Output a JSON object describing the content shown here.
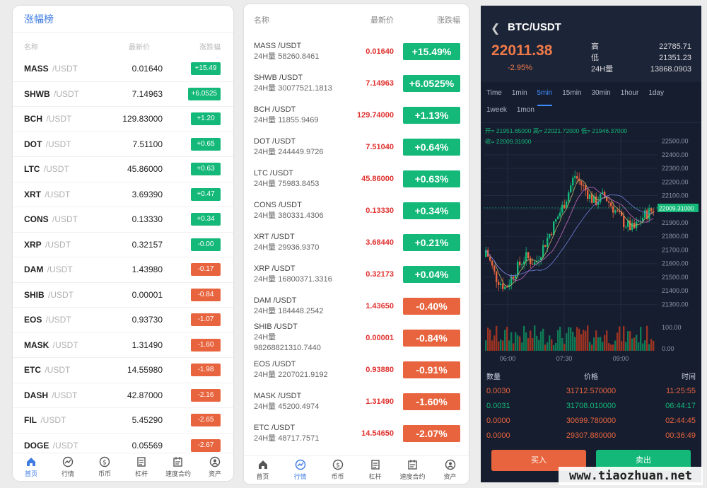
{
  "panel1": {
    "title": "涨幅榜",
    "headers": [
      "名称",
      "最新价",
      "涨跌幅"
    ],
    "rows": [
      {
        "base": "MASS",
        "quote": " /USDT",
        "price": "0.01640",
        "change": "+15.49",
        "dir": "up"
      },
      {
        "base": "SHWB",
        "quote": " /USDT",
        "price": "7.14963",
        "change": "+6.0525",
        "dir": "up"
      },
      {
        "base": "BCH",
        "quote": " /USDT",
        "price": "129.83000",
        "change": "+1.20",
        "dir": "up"
      },
      {
        "base": "DOT",
        "quote": " /USDT",
        "price": "7.51100",
        "change": "+0.65",
        "dir": "up"
      },
      {
        "base": "LTC",
        "quote": " /USDT",
        "price": "45.86000",
        "change": "+0.63",
        "dir": "up"
      },
      {
        "base": "XRT",
        "quote": " /USDT",
        "price": "3.69390",
        "change": "+0.47",
        "dir": "up"
      },
      {
        "base": "CONS",
        "quote": " /USDT",
        "price": "0.13330",
        "change": "+0.34",
        "dir": "up"
      },
      {
        "base": "XRP",
        "quote": " /USDT",
        "price": "0.32157",
        "change": "-0.00",
        "dir": "up"
      },
      {
        "base": "DAM",
        "quote": " /USDT",
        "price": "1.43980",
        "change": "-0.17",
        "dir": "dn"
      },
      {
        "base": "SHIB",
        "quote": " /USDT",
        "price": "0.00001",
        "change": "-0.84",
        "dir": "dn"
      },
      {
        "base": "EOS",
        "quote": " /USDT",
        "price": "0.93730",
        "change": "-1.07",
        "dir": "dn"
      },
      {
        "base": "MASK",
        "quote": " /USDT",
        "price": "1.31490",
        "change": "-1.60",
        "dir": "dn"
      },
      {
        "base": "ETC",
        "quote": " /USDT",
        "price": "14.55980",
        "change": "-1.98",
        "dir": "dn"
      },
      {
        "base": "DASH",
        "quote": " /USDT",
        "price": "42.87000",
        "change": "-2.16",
        "dir": "dn"
      },
      {
        "base": "FIL",
        "quote": " /USDT",
        "price": "5.45290",
        "change": "-2.65",
        "dir": "dn"
      },
      {
        "base": "DOGE",
        "quote": " /USDT",
        "price": "0.05569",
        "change": "-2.67",
        "dir": "dn"
      }
    ],
    "tabs": [
      {
        "label": "首页",
        "icon": "home-icon",
        "active": true
      },
      {
        "label": "行情",
        "icon": "market-icon",
        "active": false
      },
      {
        "label": "币币",
        "icon": "coin-icon",
        "active": false
      },
      {
        "label": "杠杆",
        "icon": "leverage-icon",
        "active": false
      },
      {
        "label": "速度合约",
        "icon": "contract-icon",
        "active": false
      },
      {
        "label": "资产",
        "icon": "asset-icon",
        "active": false
      }
    ]
  },
  "panel2": {
    "headers": [
      "名称",
      "最新价",
      "涨跌幅"
    ],
    "rows": [
      {
        "pair": "MASS /USDT",
        "vol": "24H量 58260.8461",
        "price": "0.01640",
        "change": "+15.49%",
        "dir": "up"
      },
      {
        "pair": "SHWB /USDT",
        "vol": "24H量 30077521.1813",
        "price": "7.14963",
        "change": "+6.0525%",
        "dir": "up"
      },
      {
        "pair": "BCH /USDT",
        "vol": "24H量 11855.9469",
        "price": "129.74000",
        "change": "+1.13%",
        "dir": "up"
      },
      {
        "pair": "DOT /USDT",
        "vol": "24H量 244449.9726",
        "price": "7.51040",
        "change": "+0.64%",
        "dir": "up"
      },
      {
        "pair": "LTC /USDT",
        "vol": "24H量 75983.8453",
        "price": "45.86000",
        "change": "+0.63%",
        "dir": "up"
      },
      {
        "pair": "CONS /USDT",
        "vol": "24H量 380331.4306",
        "price": "0.13330",
        "change": "+0.34%",
        "dir": "up"
      },
      {
        "pair": "XRT /USDT",
        "vol": "24H量 29936.9370",
        "price": "3.68440",
        "change": "+0.21%",
        "dir": "up"
      },
      {
        "pair": "XRP /USDT",
        "vol": "24H量 16800371.3316",
        "price": "0.32173",
        "change": "+0.04%",
        "dir": "up"
      },
      {
        "pair": "DAM /USDT",
        "vol": "24H量 184448.2542",
        "price": "1.43650",
        "change": "-0.40%",
        "dir": "dn"
      },
      {
        "pair": "SHIB /USDT",
        "vol": "24H量 98268821310.7440",
        "price": "0.00001",
        "change": "-0.84%",
        "dir": "dn"
      },
      {
        "pair": "EOS /USDT",
        "vol": "24H量 2207021.9192",
        "price": "0.93880",
        "change": "-0.91%",
        "dir": "dn"
      },
      {
        "pair": "MASK /USDT",
        "vol": "24H量 45200.4974",
        "price": "1.31490",
        "change": "-1.60%",
        "dir": "dn"
      },
      {
        "pair": "ETC /USDT",
        "vol": "24H量 48717.7571",
        "price": "14.54650",
        "change": "-2.07%",
        "dir": "dn"
      },
      {
        "pair": "DASH /USDT",
        "vol": "",
        "price": "",
        "change": "",
        "dir": "dn"
      }
    ],
    "tabs": [
      {
        "label": "首页",
        "icon": "home-icon",
        "active": false
      },
      {
        "label": "行情",
        "icon": "market-icon",
        "active": true
      },
      {
        "label": "币币",
        "icon": "coin-icon",
        "active": false
      },
      {
        "label": "杠杆",
        "icon": "leverage-icon",
        "active": false
      },
      {
        "label": "速度合约",
        "icon": "contract-icon",
        "active": false
      },
      {
        "label": "资产",
        "icon": "asset-icon",
        "active": false
      }
    ]
  },
  "panel3": {
    "pair": "BTC/USDT",
    "price": "22011.38",
    "pct": "-2.95%",
    "high_label": "高",
    "high": "22785.71",
    "low_label": "低",
    "low": "21351.23",
    "vol_label": "24H量",
    "vol": "13868.0903",
    "timeframes": [
      "Time",
      "1min",
      "5min",
      "15min",
      "30min",
      "1hour",
      "1day",
      "1week",
      "1mon"
    ],
    "active_timeframe": "5min",
    "ohlc_line1": "开= 21951.65000  高= 22021.72000  低= 21946.37000",
    "ohlc_line2": "收= 22009.31000",
    "last_tag": "22009.31000",
    "vol_axis": [
      "100.00",
      "0.00"
    ],
    "trade_headers": [
      "数量",
      "价格",
      "时间"
    ],
    "trades": [
      {
        "qty": "0.0030",
        "price": "31712.570000",
        "time": "11:25:55",
        "dir": "dn"
      },
      {
        "qty": "0.0031",
        "price": "31708.010000",
        "time": "06:44:17",
        "dir": "up"
      },
      {
        "qty": "0.0000",
        "price": "30699.780000",
        "time": "02:44:45",
        "dir": "dn"
      },
      {
        "qty": "0.0000",
        "price": "29307.880000",
        "time": "00:36:49",
        "dir": "dn"
      }
    ],
    "buy_label": "买入",
    "sell_label": "卖出",
    "colors": {
      "up": "#14b879",
      "down": "#e8643e",
      "accent": "#3d8eff"
    }
  },
  "chart_data": {
    "type": "candlestick",
    "y_ticks": [
      "22500.00",
      "22400.00",
      "22300.00",
      "22200.00",
      "22100.00",
      "22000.00",
      "21900.00",
      "21800.00",
      "21700.00",
      "21600.00",
      "21500.00",
      "21400.00",
      "21300.00"
    ],
    "x_ticks": [
      "06:00",
      "07:30",
      "09:00"
    ],
    "ylim": [
      21250,
      22550
    ]
  },
  "watermark": "www.tiaozhuan.net"
}
